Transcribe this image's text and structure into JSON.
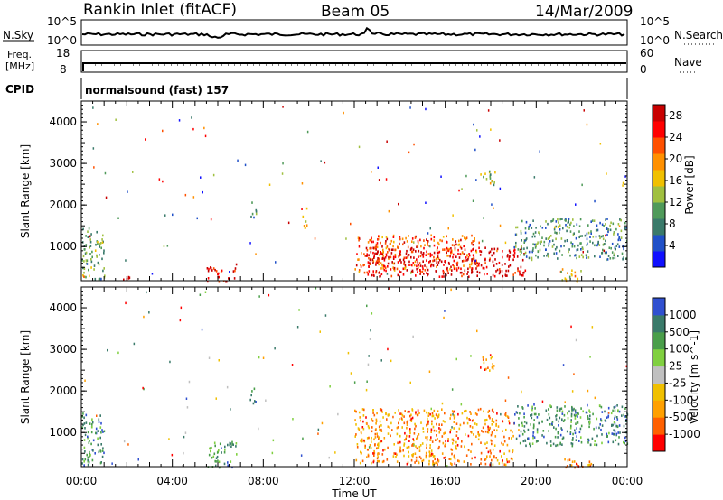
{
  "header": {
    "station": "Rankin Inlet (fitACF)",
    "beam": "Beam 05",
    "date": "14/Mar/2009"
  },
  "noise_panel": {
    "left_label": "N.Sky",
    "right_label": "N.Search",
    "y_ticks": [
      "10^5",
      "10^0"
    ]
  },
  "freq_panel": {
    "left_label_1": "Freq.",
    "left_label_2": "[MHz]",
    "left_ticks": [
      "18",
      "8"
    ],
    "right_label": "Nave",
    "right_ticks": [
      "60",
      "0"
    ]
  },
  "cpid": {
    "label": "CPID",
    "mode_text": "normalsound (fast) 157"
  },
  "chart_data": [
    {
      "type": "heatmap",
      "parameter": "Power",
      "ylabel": "Slant Range [km]",
      "xlabel": "Time UT",
      "x_ticks": [
        "00:00",
        "04:00",
        "08:00",
        "12:00",
        "16:00",
        "20:00",
        "00:00"
      ],
      "xlim_hours": [
        0,
        24
      ],
      "y_ticks": [
        1000,
        2000,
        3000,
        4000
      ],
      "ylim": [
        180,
        4500
      ],
      "colorbar": {
        "label": "Power [dB]",
        "ticks": [
          4,
          8,
          12,
          16,
          20,
          24,
          28
        ],
        "range": [
          0,
          30
        ],
        "colors": [
          "#1010ff",
          "#2050c8",
          "#3a7a6a",
          "#4f9a5a",
          "#a0c040",
          "#f0c000",
          "#ff9000",
          "#ff5000",
          "#ff0000",
          "#c80000"
        ]
      },
      "scatter_regions": [
        {
          "t0": 0.0,
          "t1": 1.0,
          "r0": 200,
          "r1": 1500,
          "level": 0.35
        },
        {
          "t0": 1.8,
          "t1": 2.2,
          "r0": 180,
          "r1": 400,
          "level": 0.95
        },
        {
          "t0": 5.5,
          "t1": 6.8,
          "r0": 180,
          "r1": 600,
          "level": 0.9
        },
        {
          "t0": 7.4,
          "t1": 7.7,
          "r0": 1700,
          "r1": 2100,
          "level": 0.3
        },
        {
          "t0": 9.7,
          "t1": 9.9,
          "r0": 1400,
          "r1": 2000,
          "level": 0.55
        },
        {
          "t0": 12.0,
          "t1": 17.5,
          "r0": 400,
          "r1": 1300,
          "level": 0.75
        },
        {
          "t0": 12.5,
          "t1": 19.5,
          "r0": 300,
          "r1": 1000,
          "level": 0.95
        },
        {
          "t0": 17.5,
          "t1": 18.2,
          "r0": 2500,
          "r1": 2900,
          "level": 0.45
        },
        {
          "t0": 19.0,
          "t1": 24.0,
          "r0": 700,
          "r1": 1700,
          "level": 0.3
        },
        {
          "t0": 21.0,
          "t1": 22.0,
          "r0": 180,
          "r1": 500,
          "level": 0.55
        }
      ]
    },
    {
      "type": "heatmap",
      "parameter": "Velocity",
      "ylabel": "Slant Range [km]",
      "xlabel": "Time UT",
      "x_ticks": [
        "00:00",
        "04:00",
        "08:00",
        "12:00",
        "16:00",
        "20:00",
        "00:00"
      ],
      "xlim_hours": [
        0,
        24
      ],
      "y_ticks": [
        1000,
        2000,
        3000,
        4000
      ],
      "ylim": [
        180,
        4500
      ],
      "colorbar": {
        "label": "Velocity [m s^-1]",
        "ticks": [
          "1000",
          "500",
          "100",
          "25",
          "-25",
          "-100",
          "-500",
          "-1000"
        ],
        "units_ms": [
          1000,
          500,
          100,
          25,
          -25,
          -100,
          -500,
          -1000
        ],
        "colors": [
          "#3050d0",
          "#3a7a6a",
          "#4a9e4a",
          "#80d040",
          "#c0c0c0",
          "#f0c000",
          "#ffa000",
          "#ff6000",
          "#ff0000"
        ]
      },
      "scatter_regions": [
        {
          "t0": 0.0,
          "t1": 1.0,
          "r0": 200,
          "r1": 1500,
          "level": 0.2
        },
        {
          "t0": 5.5,
          "t1": 6.8,
          "r0": 180,
          "r1": 800,
          "level": 0.25
        },
        {
          "t0": 7.4,
          "t1": 7.7,
          "r0": 1700,
          "r1": 2100,
          "level": 0.15
        },
        {
          "t0": 12.0,
          "t1": 19.0,
          "r0": 250,
          "r1": 1600,
          "level": 0.75
        },
        {
          "t0": 17.5,
          "t1": 18.2,
          "r0": 2500,
          "r1": 2900,
          "level": 0.75
        },
        {
          "t0": 19.0,
          "t1": 24.0,
          "r0": 700,
          "r1": 1700,
          "level": 0.2
        },
        {
          "t0": 21.0,
          "t1": 22.5,
          "r0": 180,
          "r1": 400,
          "level": 0.8
        }
      ]
    }
  ]
}
